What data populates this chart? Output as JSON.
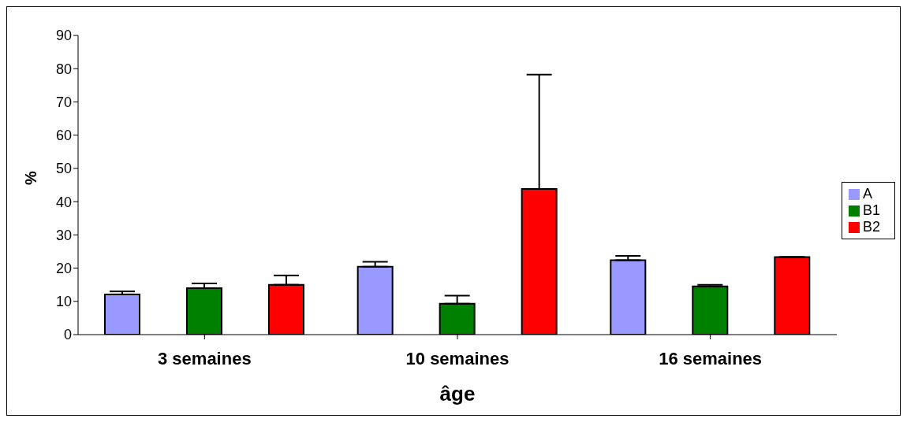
{
  "chart_data": {
    "type": "bar",
    "xlabel": "âge",
    "ylabel": "%",
    "categories": [
      "3 semaines",
      "10 semaines",
      "16 semaines"
    ],
    "series": [
      {
        "name": "A",
        "color": "#9999ff",
        "values": [
          12.1,
          20.4,
          22.4
        ],
        "errors": [
          [
            12.1,
            13.0
          ],
          [
            20.4,
            21.9
          ],
          [
            22.4,
            23.7
          ]
        ]
      },
      {
        "name": "B1",
        "color": "#008000",
        "values": [
          14.0,
          9.3,
          14.5
        ],
        "errors": [
          [
            14.0,
            15.4
          ],
          [
            9.3,
            11.7
          ],
          [
            14.5,
            15.0
          ]
        ]
      },
      {
        "name": "B2",
        "color": "#ff0000",
        "values": [
          15.0,
          43.8,
          23.3
        ],
        "errors": [
          [
            15.0,
            17.8
          ],
          [
            43.8,
            78.2
          ],
          null
        ]
      }
    ],
    "ylim": [
      0,
      90
    ],
    "yticks": [
      0,
      10,
      20,
      30,
      40,
      50,
      60,
      70,
      80,
      90
    ],
    "grid": false,
    "legend": "right"
  }
}
